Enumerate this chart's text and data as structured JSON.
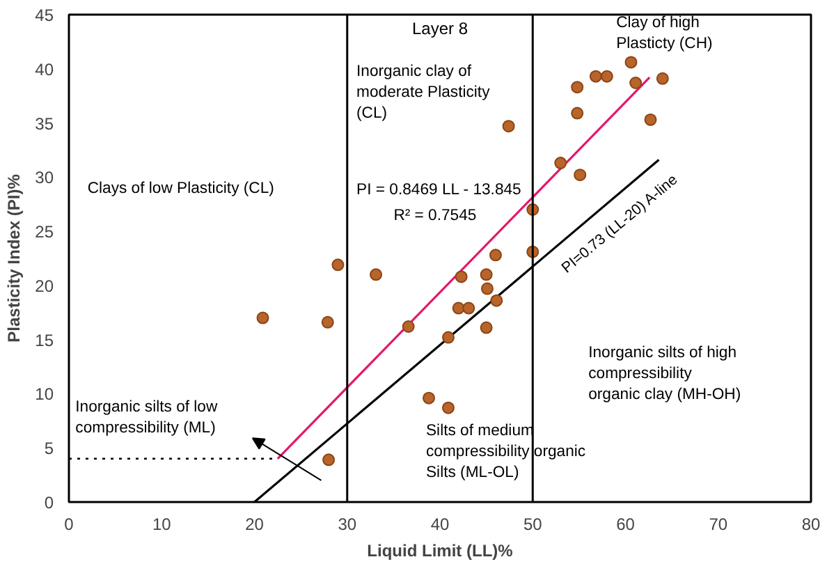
{
  "chart_data": {
    "type": "scatter",
    "title": "Layer 8",
    "xlabel": "Liquid Limit (LL)%",
    "ylabel": "Plasticity Index (PI)%",
    "xlim": [
      0,
      80
    ],
    "ylim": [
      0,
      45
    ],
    "xticks": [
      0,
      10,
      20,
      30,
      40,
      50,
      60,
      70,
      80
    ],
    "yticks": [
      0,
      5,
      10,
      15,
      20,
      25,
      30,
      35,
      40,
      45
    ],
    "grid": false,
    "series": [
      {
        "marker": "circle",
        "color": "#b8642a",
        "x": [
          29.0,
          33.1,
          20.9,
          27.9,
          36.6,
          38.8,
          28.0,
          40.9,
          40.9,
          60.6,
          56.8,
          58.0,
          61.1,
          64.0,
          54.8,
          54.8,
          62.7,
          47.4,
          53.0,
          55.1,
          50.0,
          46.0,
          50.0,
          42.3,
          45.0,
          45.1,
          42.0,
          43.1,
          46.1,
          45.0
        ],
        "values": [
          21.9,
          21.0,
          17.0,
          16.6,
          16.2,
          9.6,
          3.9,
          15.2,
          8.7,
          40.6,
          39.3,
          39.3,
          38.7,
          39.1,
          38.3,
          35.9,
          35.3,
          34.7,
          31.3,
          30.2,
          27.0,
          22.8,
          23.1,
          20.8,
          21.0,
          19.7,
          17.9,
          17.9,
          18.6,
          16.1
        ]
      },
      {
        "type": "line",
        "marker": "none",
        "color": "#e3186b",
        "line_style": "solid",
        "x": [
          22.5,
          62.6
        ],
        "values": [
          4.0,
          39.2
        ]
      },
      {
        "type": "line",
        "marker": "none",
        "color": "#000000",
        "line_style": "solid",
        "x": [
          20.0,
          63.6
        ],
        "values": [
          0.0,
          31.6
        ]
      },
      {
        "type": "line",
        "marker": "none",
        "color": "#000000",
        "line_style": "dotted",
        "x": [
          0.0,
          22.5
        ],
        "values": [
          4.0,
          4.0
        ]
      }
    ],
    "ref_lines": [
      {
        "axis": "x",
        "value": 30,
        "color": "#000000"
      },
      {
        "axis": "x",
        "value": 50,
        "color": "#000000"
      }
    ],
    "annotations": [
      "Clays of low Plasticity (CL)",
      "Inorganic clay of\nmoderate Plasticity\n(CL)",
      "Clay of high\nPlasticty (CH)",
      "PI = 0.8469 LL - 13.845",
      "R² = 0.7545",
      "PI=0.73 (LL-20) A-line",
      "Inorganic silts of low\ncompressibility (ML)",
      "Silts of medium\ncompressibility organic\nSilts (ML-OL)",
      "Inorganic silts of high\ncompressibility\norganic clay (MH-OH)"
    ]
  }
}
